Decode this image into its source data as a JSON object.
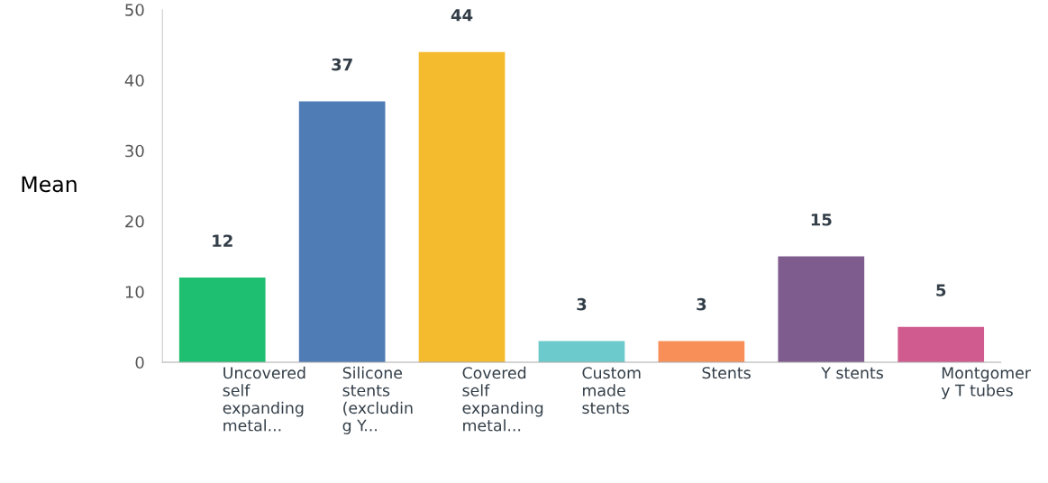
{
  "chart_data": {
    "type": "bar",
    "ylabel": "Mean",
    "categories": [
      "Uncovered\nself\nexpanding\nmetal...",
      "Silicone\nstents\n(excludin\ng Y...",
      "Covered\nself\nexpanding\nmetal...",
      "Custom\nmade\nstents",
      "Stents",
      "Y stents",
      "Montgomer\ny T tubes"
    ],
    "values": [
      12,
      37,
      44,
      3,
      3,
      15,
      5
    ],
    "colors": [
      "#1fbf71",
      "#507cb6",
      "#f4bb2e",
      "#6ccacc",
      "#f88f58",
      "#7f5c8e",
      "#d05b8f"
    ],
    "ylim": [
      0,
      50
    ],
    "yticks": [
      0,
      10,
      20,
      30,
      40,
      50
    ],
    "data_labels": true,
    "grid": false,
    "legend": false
  }
}
